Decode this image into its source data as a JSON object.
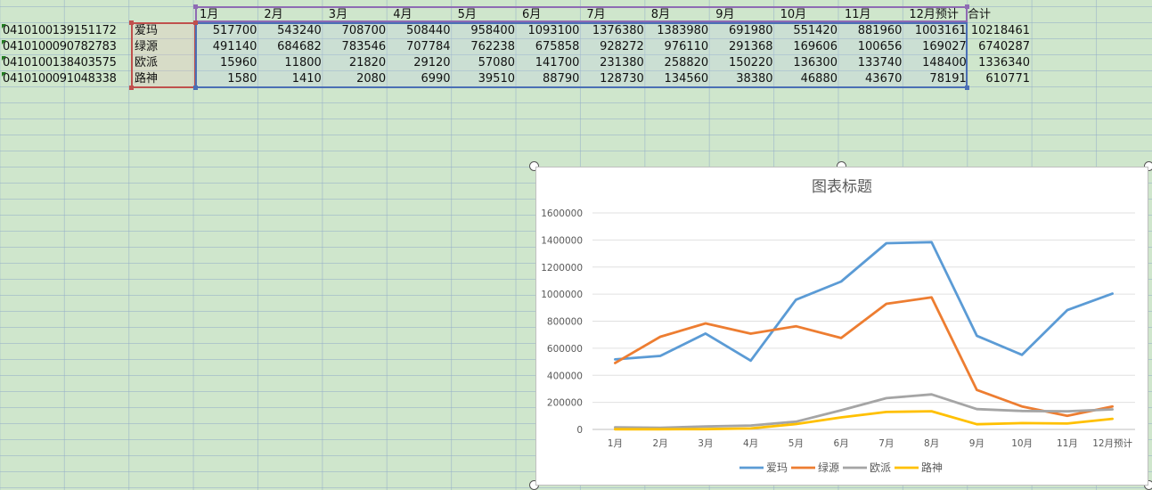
{
  "sheet": {
    "header_row": [
      "1月",
      "2月",
      "3月",
      "4月",
      "5月",
      "6月",
      "7月",
      "8月",
      "9月",
      "10月",
      "11月",
      "12月预计"
    ],
    "total_header": "合计",
    "rows": [
      {
        "code": "0410100139151172",
        "brand": "爱玛",
        "values": [
          "517700",
          "543240",
          "708700",
          "508440",
          "958400",
          "1093100",
          "1376380",
          "1383980",
          "691980",
          "551420",
          "881960",
          "1003161"
        ],
        "total": "10218461"
      },
      {
        "code": "0410100090782783",
        "brand": "绿源",
        "values": [
          "491140",
          "684682",
          "783546",
          "707784",
          "762238",
          "675858",
          "928272",
          "976110",
          "291368",
          "169606",
          "100656",
          "169027"
        ],
        "total": "6740287"
      },
      {
        "code": "0410100138403575",
        "brand": "欧派",
        "values": [
          "15960",
          "11800",
          "21820",
          "29120",
          "57080",
          "141700",
          "231380",
          "258820",
          "150220",
          "136300",
          "133740",
          "148400"
        ],
        "total": "1336340"
      },
      {
        "code": "0410100091048338",
        "brand": "路神",
        "values": [
          "1580",
          "1410",
          "2080",
          "6990",
          "39510",
          "88790",
          "128730",
          "134560",
          "38380",
          "46880",
          "43670",
          "78191"
        ],
        "total": "610771"
      }
    ]
  },
  "chart_data": {
    "type": "line",
    "title": "图表标题",
    "categories": [
      "1月",
      "2月",
      "3月",
      "4月",
      "5月",
      "6月",
      "7月",
      "8月",
      "9月",
      "10月",
      "11月",
      "12月预计"
    ],
    "ylim": [
      0,
      1600000
    ],
    "yticks": [
      "0",
      "200000",
      "400000",
      "600000",
      "800000",
      "1000000",
      "1200000",
      "1400000",
      "1600000"
    ],
    "grid": true,
    "legend_position": "bottom",
    "series": [
      {
        "name": "爱玛",
        "color": "#5b9bd5",
        "values": [
          517700,
          543240,
          708700,
          508440,
          958400,
          1093100,
          1376380,
          1383980,
          691980,
          551420,
          881960,
          1003161
        ]
      },
      {
        "name": "绿源",
        "color": "#ed7d31",
        "values": [
          491140,
          684682,
          783546,
          707784,
          762238,
          675858,
          928272,
          976110,
          291368,
          169606,
          100656,
          169027
        ]
      },
      {
        "name": "欧派",
        "color": "#a5a5a5",
        "values": [
          15960,
          11800,
          21820,
          29120,
          57080,
          141700,
          231380,
          258820,
          150220,
          136300,
          133740,
          148400
        ]
      },
      {
        "name": "路神",
        "color": "#ffc000",
        "values": [
          1580,
          1410,
          2080,
          6990,
          39510,
          88790,
          128730,
          134560,
          38380,
          46880,
          43670,
          78191
        ]
      }
    ]
  }
}
